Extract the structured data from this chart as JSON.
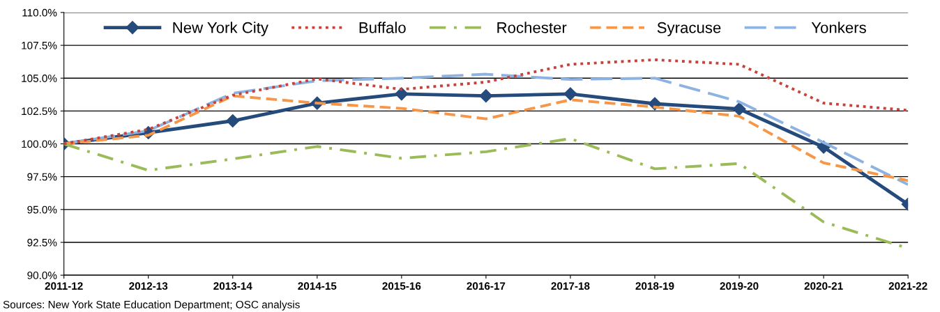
{
  "chart_data": {
    "type": "line",
    "categories": [
      "2011-12",
      "2012-13",
      "2013-14",
      "2014-15",
      "2015-16",
      "2016-17",
      "2017-18",
      "2018-19",
      "2019-20",
      "2020-21",
      "2021-22"
    ],
    "series": [
      {
        "name": "New York City",
        "color": "#254b7c",
        "line_style": "solid",
        "marker": "diamond",
        "values": [
          100.0,
          100.85,
          101.75,
          103.1,
          103.8,
          103.65,
          103.8,
          103.05,
          102.65,
          99.75,
          95.4
        ]
      },
      {
        "name": "Buffalo",
        "color": "#c8423b",
        "line_style": "dotted",
        "values": [
          100.0,
          101.1,
          103.7,
          104.95,
          104.15,
          104.7,
          106.05,
          106.4,
          106.05,
          103.1,
          102.55
        ]
      },
      {
        "name": "Rochester",
        "color": "#9bbb59",
        "line_style": "dashdot",
        "values": [
          100.0,
          97.98,
          98.85,
          99.8,
          98.9,
          99.4,
          100.4,
          98.1,
          98.5,
          94.05,
          92.05
        ]
      },
      {
        "name": "Syracuse",
        "color": "#f79646",
        "line_style": "dashed",
        "values": [
          100.0,
          100.65,
          103.65,
          103.1,
          102.7,
          101.9,
          103.35,
          102.8,
          102.1,
          98.55,
          97.2
        ]
      },
      {
        "name": "Yonkers",
        "color": "#8db3e2",
        "line_style": "longdash",
        "values": [
          100.0,
          101.0,
          103.85,
          104.8,
          105.0,
          105.3,
          104.9,
          105.0,
          103.2,
          100.1,
          96.9
        ]
      }
    ],
    "ylim": [
      90,
      110
    ],
    "yticks": [
      {
        "value": 90,
        "label": "90.0%"
      },
      {
        "value": 92.5,
        "label": "92.5%"
      },
      {
        "value": 95,
        "label": "95.0%"
      },
      {
        "value": 97.5,
        "label": "97.5%"
      },
      {
        "value": 100,
        "label": "100.0%"
      },
      {
        "value": 102.5,
        "label": "102.5%"
      },
      {
        "value": 105,
        "label": "105.0%"
      },
      {
        "value": 107.5,
        "label": "107.5%"
      },
      {
        "value": 110,
        "label": "110.0%"
      }
    ],
    "grid": "y",
    "legend": "top",
    "annotations": [
      "Sources: New York State Education Department; OSC analysis"
    ]
  }
}
